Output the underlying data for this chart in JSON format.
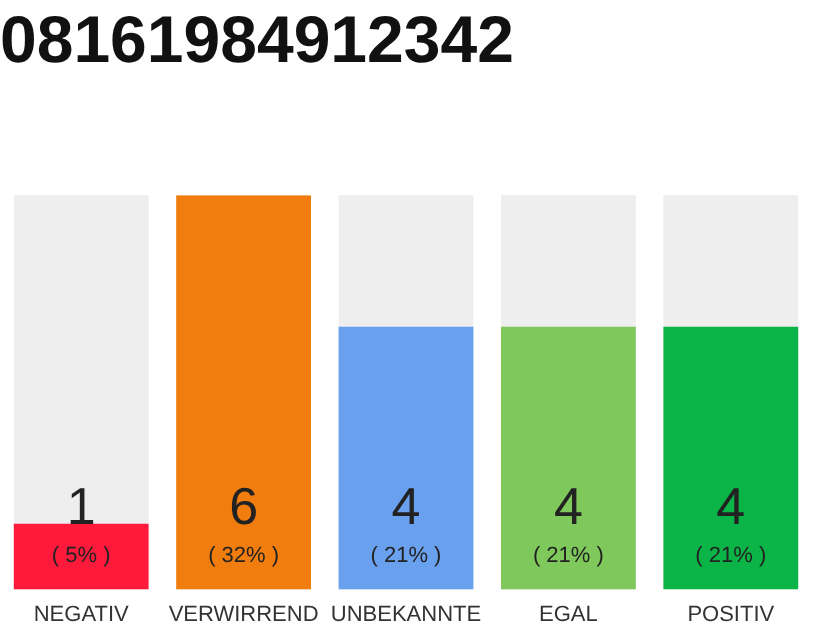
{
  "chart_data": {
    "type": "bar",
    "title": "08161984912342",
    "categories": [
      "NEGATIV",
      "VERWIRREND",
      "UNBEKANNTE",
      "EGAL",
      "POSITIV"
    ],
    "values": [
      1,
      6,
      4,
      4,
      4
    ],
    "colors": [
      "#ff1a3c",
      "#f07d0e",
      "#6aa1ef",
      "#7ec85c",
      "#0bb446"
    ],
    "value_labels": [
      "1\n( 5% )",
      "6\n( 32% )",
      "4\n( 21% )",
      "4\n( 21% )",
      "4\n( 21% )"
    ],
    "tick_labels": "x",
    "grid": false,
    "legend": false
  }
}
